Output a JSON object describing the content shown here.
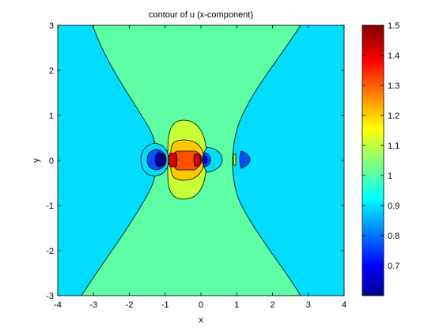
{
  "chart_data": {
    "type": "contour",
    "title": "contour of u (x-component)",
    "xlabel": "x",
    "ylabel": "y",
    "xlim": [
      -4,
      4
    ],
    "ylim": [
      -3,
      3
    ],
    "xticks": [
      "-4",
      "-3",
      "-2",
      "-1",
      "0",
      "1",
      "2",
      "3",
      "4"
    ],
    "yticks": [
      "-3",
      "-2",
      "-1",
      "0",
      "1",
      "2",
      "3"
    ],
    "colorbar": {
      "colormap": "jet",
      "range": [
        0.6,
        1.5
      ],
      "ticks": [
        "0.7",
        "0.8",
        "0.9",
        "1",
        "1.1",
        "1.2",
        "1.3",
        "1.4",
        "1.5"
      ]
    },
    "contour_levels": [
      {
        "value": 0.6,
        "color": "#000080"
      },
      {
        "value": 0.7,
        "color": "#0000D8"
      },
      {
        "value": 0.8,
        "color": "#0050FF"
      },
      {
        "value": 0.9,
        "color": "#00DDFF"
      },
      {
        "value": 1.0,
        "color": "#5CFFA4"
      },
      {
        "value": 1.1,
        "color": "#C8FF37"
      },
      {
        "value": 1.2,
        "color": "#FFC800"
      },
      {
        "value": 1.3,
        "color": "#FF5000"
      },
      {
        "value": 1.4,
        "color": "#D00000"
      }
    ],
    "grid": false
  }
}
